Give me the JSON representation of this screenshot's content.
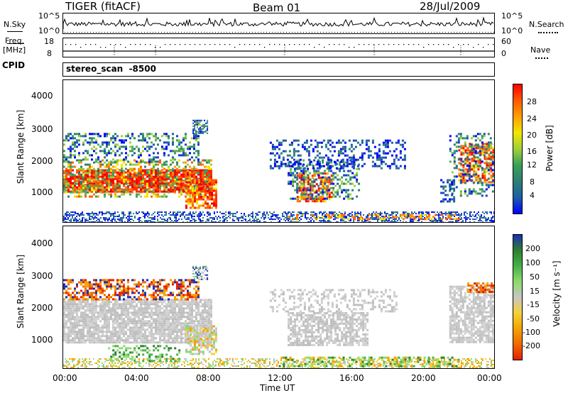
{
  "header": {
    "radar": "TIGER (fitACF)",
    "beam": "Beam 01",
    "date": "28/Jul/2009"
  },
  "strip": {
    "nsky_label": "N.Sky",
    "nsearch_label": "N.Search",
    "nsky_ticks": [
      "10^5",
      "10^0"
    ],
    "nsearch_ticks": [
      "10^5",
      "10^0"
    ],
    "freq_label_1": "Freq.",
    "freq_label_2": "[MHz]",
    "freq_ticks": [
      "18",
      "8"
    ],
    "nave_label": "Nave",
    "nave_ticks": [
      "60",
      "0"
    ],
    "cpid_label": "CPID",
    "cpid_value": "stereo_scan  -8500"
  },
  "time_axis": {
    "label": "Time UT",
    "ticks": [
      "00:00",
      "04:00",
      "08:00",
      "12:00",
      "16:00",
      "20:00",
      "00:00"
    ]
  },
  "chart_data": [
    {
      "type": "heatmap",
      "title": "",
      "xlabel": "",
      "ylabel": "Slant Range [km]",
      "y_ticks": [
        "4000",
        "3000",
        "2000",
        "1000"
      ],
      "ylim": [
        200,
        4500
      ],
      "xlim_hours": [
        0,
        24
      ],
      "colorbar": {
        "label": "Power [dB]",
        "ticks": [
          "28",
          "24",
          "20",
          "16",
          "12",
          "8",
          "4"
        ],
        "colors": [
          "#ff0000",
          "#ff5a00",
          "#ff9f00",
          "#f2e600",
          "#9fcf3a",
          "#3aa05a",
          "#2e7f72",
          "#1f5fa8",
          "#0000ff"
        ]
      }
    },
    {
      "type": "heatmap",
      "title": "",
      "xlabel": "Time UT",
      "ylabel": "Slant Range [km]",
      "y_ticks": [
        "4000",
        "3000",
        "2000",
        "1000"
      ],
      "ylim": [
        200,
        4500
      ],
      "xlim_hours": [
        0,
        24
      ],
      "colorbar": {
        "label": "Velocity [m s⁻¹]",
        "ticks": [
          "200",
          "100",
          "50",
          "15",
          "-15",
          "-50",
          "-100",
          "-200"
        ],
        "colors": [
          "#1a2fb5",
          "#2f7f2f",
          "#46b04a",
          "#8edb6a",
          "#c6c6c6",
          "#f4d23a",
          "#f4a300",
          "#f26a00",
          "#e02000"
        ]
      }
    }
  ]
}
